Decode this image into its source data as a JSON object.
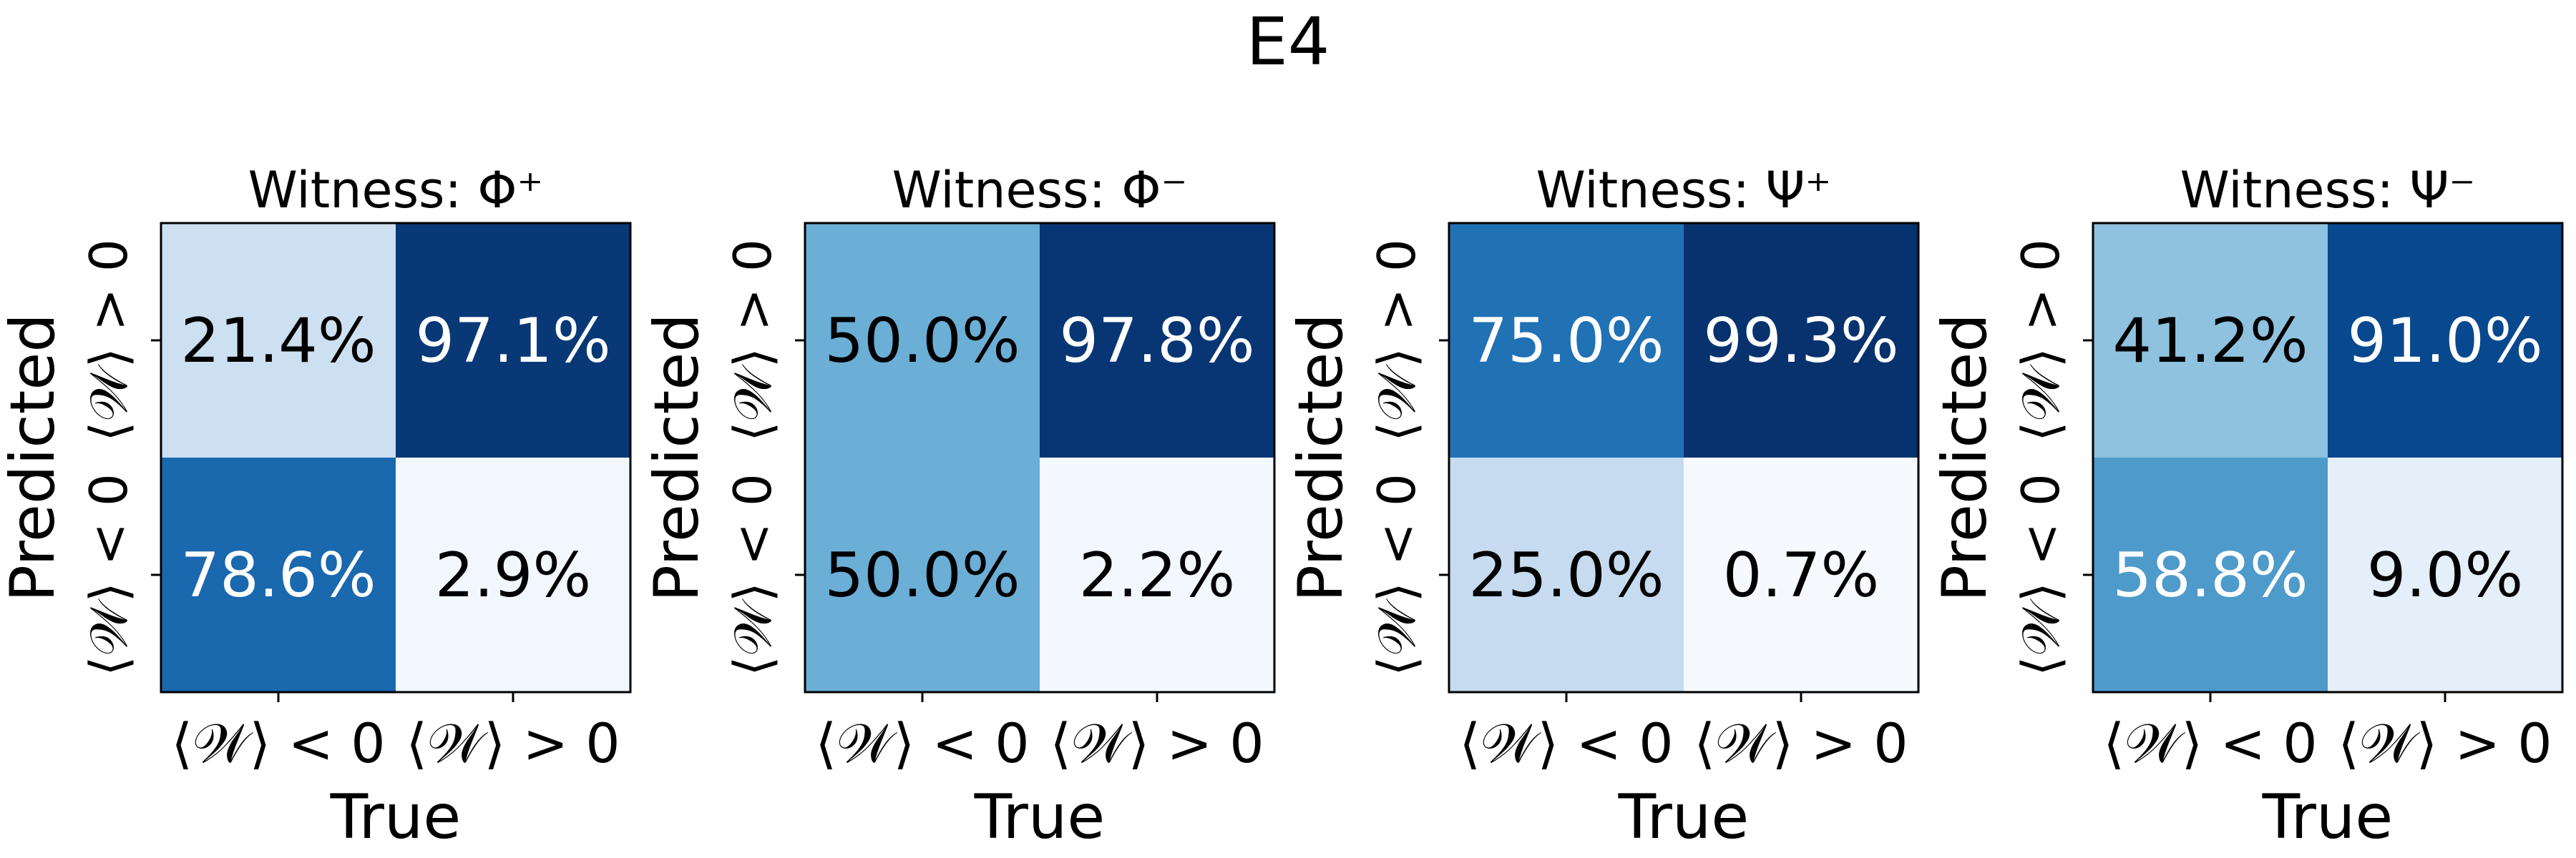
{
  "figure_title": "E4",
  "chart_data": [
    {
      "type": "heatmap",
      "title": "Witness: Φ⁺",
      "xlabel": "True",
      "ylabel": "Predicted",
      "x_categories": [
        "⟨𝒲⟩ < 0",
        "⟨𝒲⟩ > 0"
      ],
      "y_categories": [
        "⟨𝒲⟩ > 0",
        "⟨𝒲⟩ < 0"
      ],
      "values": [
        [
          21.4,
          97.1
        ],
        [
          78.6,
          2.9
        ]
      ],
      "labels": [
        [
          "21.4%",
          "97.1%"
        ],
        [
          "78.6%",
          "2.9%"
        ]
      ],
      "colormap": "Blues",
      "color_range": [
        0,
        100
      ]
    },
    {
      "type": "heatmap",
      "title": "Witness: Φ⁻",
      "xlabel": "True",
      "ylabel": "Predicted",
      "x_categories": [
        "⟨𝒲⟩ < 0",
        "⟨𝒲⟩ > 0"
      ],
      "y_categories": [
        "⟨𝒲⟩ > 0",
        "⟨𝒲⟩ < 0"
      ],
      "values": [
        [
          50.0,
          97.8
        ],
        [
          50.0,
          2.2
        ]
      ],
      "labels": [
        [
          "50.0%",
          "97.8%"
        ],
        [
          "50.0%",
          "2.2%"
        ]
      ],
      "colormap": "Blues",
      "color_range": [
        0,
        100
      ]
    },
    {
      "type": "heatmap",
      "title": "Witness: Ψ⁺",
      "xlabel": "True",
      "ylabel": "Predicted",
      "x_categories": [
        "⟨𝒲⟩ < 0",
        "⟨𝒲⟩ > 0"
      ],
      "y_categories": [
        "⟨𝒲⟩ > 0",
        "⟨𝒲⟩ < 0"
      ],
      "values": [
        [
          75.0,
          99.3
        ],
        [
          25.0,
          0.7
        ]
      ],
      "labels": [
        [
          "75.0%",
          "99.3%"
        ],
        [
          "25.0%",
          "0.7%"
        ]
      ],
      "colormap": "Blues",
      "color_range": [
        0,
        100
      ]
    },
    {
      "type": "heatmap",
      "title": "Witness: Ψ⁻",
      "xlabel": "True",
      "ylabel": "Predicted",
      "x_categories": [
        "⟨𝒲⟩ < 0",
        "⟨𝒲⟩ > 0"
      ],
      "y_categories": [
        "⟨𝒲⟩ > 0",
        "⟨𝒲⟩ < 0"
      ],
      "values": [
        [
          41.2,
          91.0
        ],
        [
          58.8,
          9.0
        ]
      ],
      "labels": [
        [
          "41.2%",
          "91.0%"
        ],
        [
          "58.8%",
          "9.0%"
        ]
      ],
      "colormap": "Blues",
      "color_range": [
        0,
        100
      ]
    }
  ]
}
